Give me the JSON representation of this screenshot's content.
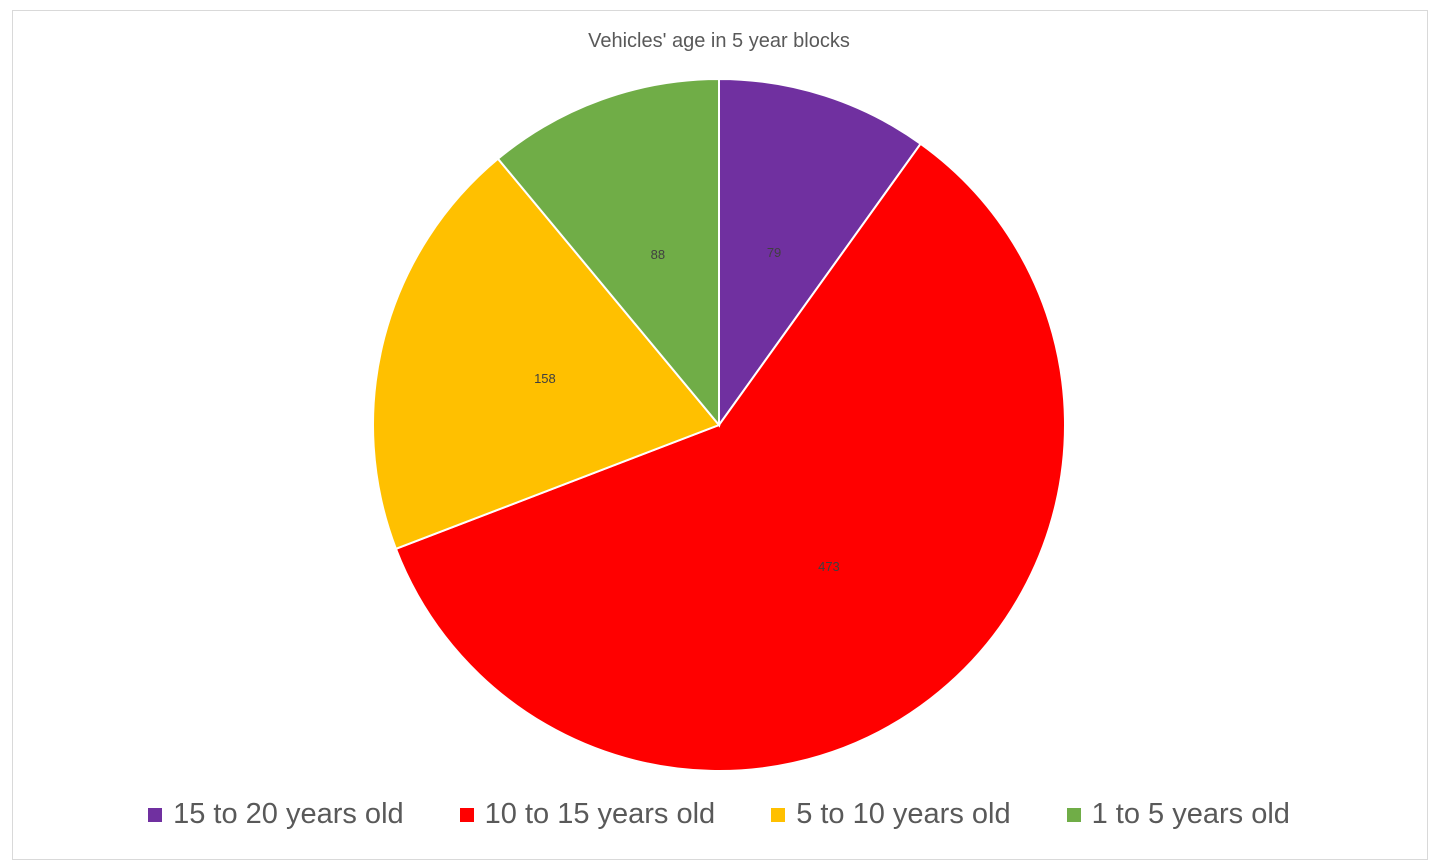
{
  "chart_data": {
    "type": "pie",
    "title": "Vehicles' age in 5 year blocks",
    "start_angle_deg": 0,
    "direction": "clockwise",
    "slices": [
      {
        "label": "15 to 20 years old",
        "value": 79,
        "color": "#7030A0"
      },
      {
        "label": "10 to 15 years old",
        "value": 473,
        "color": "#FF0000"
      },
      {
        "label": "5 to 10 years old",
        "value": 158,
        "color": "#FFC000"
      },
      {
        "label": "1 to 5 years old",
        "value": 88,
        "color": "#70AD47"
      }
    ],
    "data_labels": true,
    "legend_position": "bottom"
  }
}
